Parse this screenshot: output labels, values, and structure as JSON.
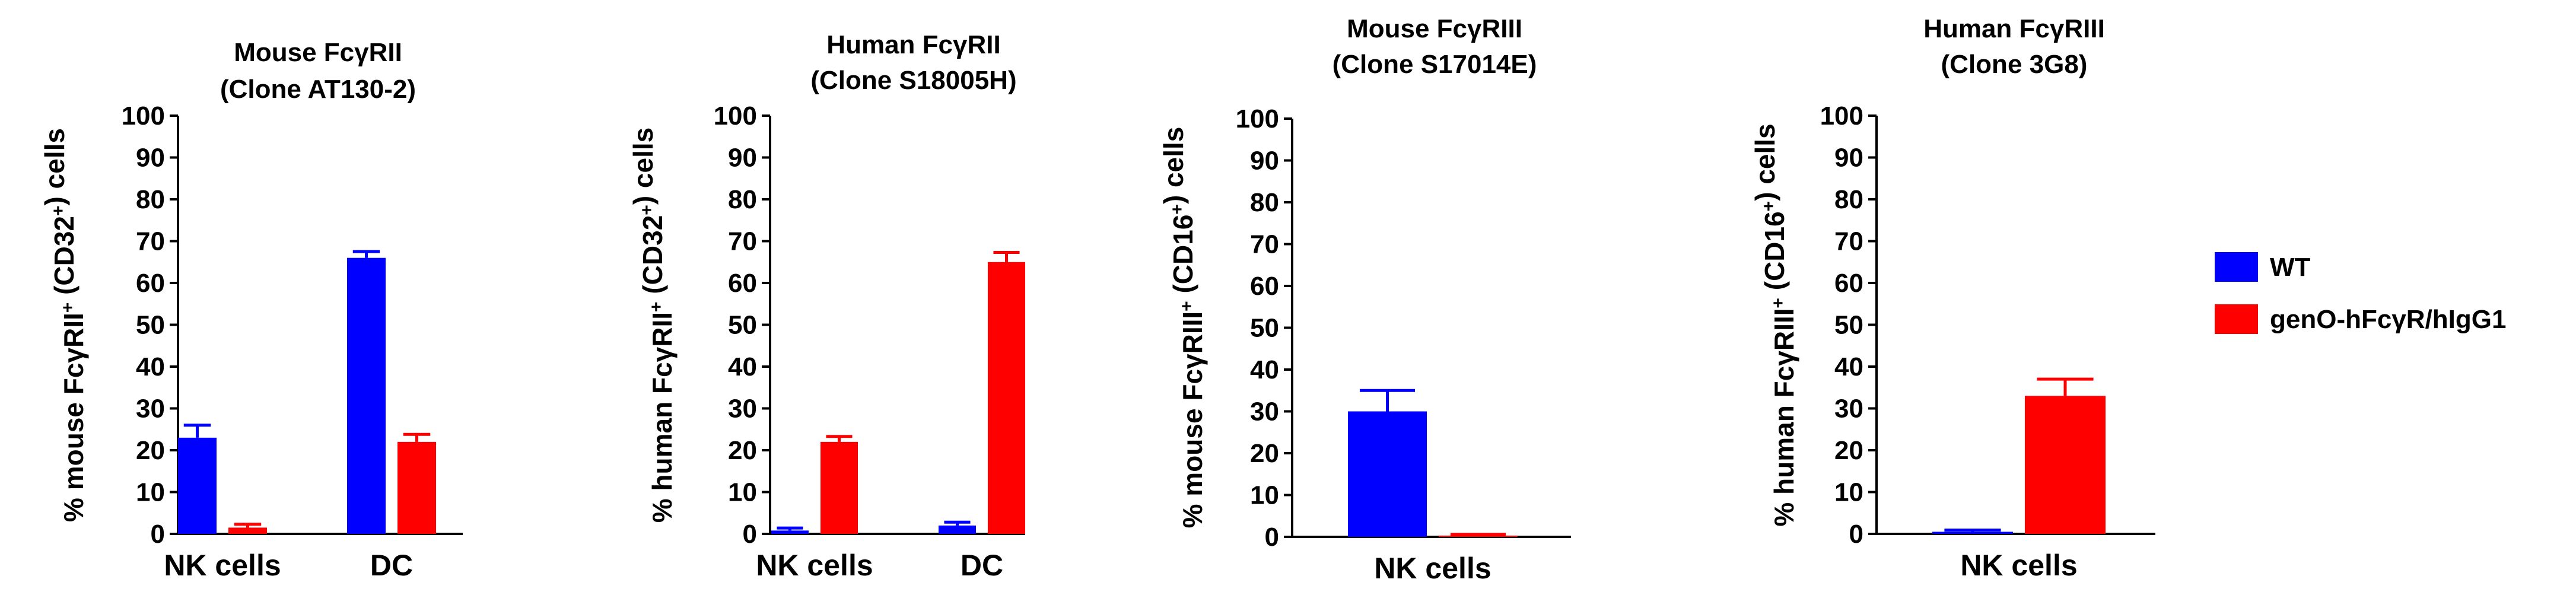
{
  "colors": {
    "wt": "#0000ff",
    "geno": "#ff0000",
    "axis": "#000000"
  },
  "legend": [
    {
      "label": "WT",
      "color": "#0000ff"
    },
    {
      "label": "genO-hFcγR/hIgG1",
      "color": "#ff0000"
    }
  ],
  "chart_data": [
    {
      "type": "bar",
      "title": [
        "Mouse FcγRII",
        "(Clone AT130-2)"
      ],
      "ylabel": {
        "pre": "% mouse FcγRII",
        "sup": "+",
        "post": " (CD32",
        "sup2": "+",
        "post2": ") cells"
      },
      "ylim": [
        0,
        100
      ],
      "yticks": [
        0,
        10,
        20,
        30,
        40,
        50,
        60,
        70,
        80,
        90,
        100
      ],
      "categories": [
        "NK cells",
        "DC"
      ],
      "series": [
        {
          "name": "WT",
          "values": [
            23,
            66
          ],
          "errors": [
            3,
            1.5
          ]
        },
        {
          "name": "genO-hFcγR/hIgG1",
          "values": [
            1.5,
            22
          ],
          "errors": [
            0.8,
            1.8
          ]
        }
      ]
    },
    {
      "type": "bar",
      "title": [
        "Human FcγRII",
        "(Clone S18005H)"
      ],
      "ylabel": {
        "pre": "% human FcγRII",
        "sup": "+",
        "post": " (CD32",
        "sup2": "+",
        "post2": ") cells"
      },
      "ylim": [
        0,
        100
      ],
      "yticks": [
        0,
        10,
        20,
        30,
        40,
        50,
        60,
        70,
        80,
        90,
        100
      ],
      "categories": [
        "NK cells",
        "DC"
      ],
      "series": [
        {
          "name": "WT",
          "values": [
            0.8,
            2
          ],
          "errors": [
            0.6,
            0.8
          ]
        },
        {
          "name": "genO-hFcγR/hIgG1",
          "values": [
            22,
            65
          ],
          "errors": [
            1.3,
            2.3
          ]
        }
      ]
    },
    {
      "type": "bar",
      "title": [
        "Mouse FcγRIII",
        "(Clone S17014E)"
      ],
      "ylabel": {
        "pre": "% mouse FcγRIII",
        "sup": "+",
        "post": " (CD16",
        "sup2": "+",
        "post2": ") cells"
      },
      "ylim": [
        0,
        100
      ],
      "yticks": [
        0,
        10,
        20,
        30,
        40,
        50,
        60,
        70,
        80,
        90,
        100
      ],
      "categories": [
        "NK cells"
      ],
      "series": [
        {
          "name": "WT",
          "values": [
            30
          ],
          "errors": [
            5
          ]
        },
        {
          "name": "genO-hFcγR/hIgG1",
          "values": [
            0.3
          ],
          "errors": [
            0.3
          ]
        }
      ]
    },
    {
      "type": "bar",
      "title": [
        "Human FcγRIII",
        "(Clone 3G8)"
      ],
      "ylabel": {
        "pre": "% human FcγRIII",
        "sup": "+",
        "post": " (CD16",
        "sup2": "+",
        "post2": ") cells"
      },
      "ylim": [
        0,
        100
      ],
      "yticks": [
        0,
        10,
        20,
        30,
        40,
        50,
        60,
        70,
        80,
        90,
        100
      ],
      "categories": [
        "NK cells"
      ],
      "series": [
        {
          "name": "WT",
          "values": [
            0.5
          ],
          "errors": [
            0.4
          ]
        },
        {
          "name": "genO-hFcγR/hIgG1",
          "values": [
            33
          ],
          "errors": [
            4
          ]
        }
      ]
    }
  ]
}
